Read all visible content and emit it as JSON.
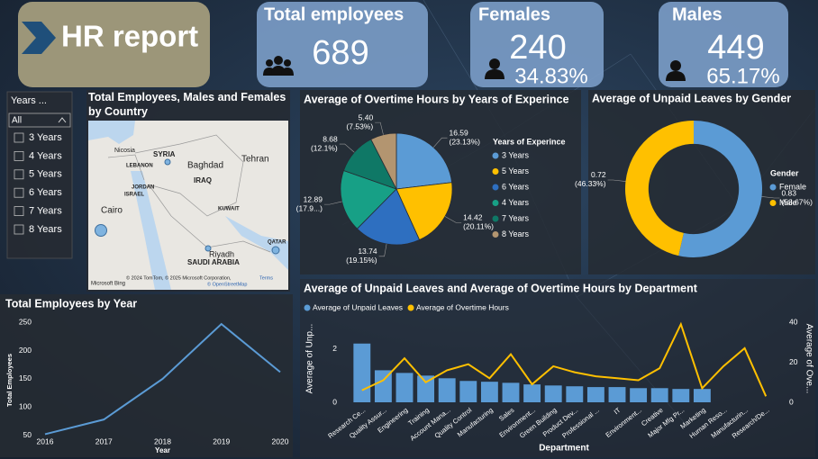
{
  "header": {
    "title": "HR report"
  },
  "cards": [
    {
      "title": "Total employees",
      "value": 689
    },
    {
      "title": "Females",
      "value": 240,
      "percent": "34.83%"
    },
    {
      "title": "Males",
      "value": 449,
      "percent": "65.17%"
    }
  ],
  "slicer": {
    "title": "Years ...",
    "selected": "All",
    "items": [
      "3 Years",
      "4 Years",
      "5 Years",
      "6 Years",
      "7 Years",
      "8 Years"
    ]
  },
  "map": {
    "title": "Total Employees, Males and Females by Country",
    "labels": [
      "Nicosia",
      "SYRIA",
      "LEBANON",
      "Baghdad",
      "Tehran",
      "ISRAEL",
      "JORDAN",
      "IRAQ",
      "Cairo",
      "KUWAIT",
      "Riyadh",
      "QATAR",
      "SAUDI ARABIA"
    ],
    "credits": "© 2024 TomTom, © 2025 Microsoft Corporation,",
    "terms": "Terms",
    "osm": "© OpenStreetMap",
    "logo": "Microsoft Bing"
  },
  "chart_data": [
    {
      "type": "pie",
      "title": "Average of Overtime Hours by Years of Experince",
      "legend_title": "Years of Experince",
      "legend": "right",
      "categories": [
        "3 Years",
        "5 Years",
        "6 Years",
        "4 Years",
        "7 Years",
        "8 Years"
      ],
      "values": [
        16.59,
        14.42,
        13.74,
        12.89,
        8.68,
        5.4
      ],
      "value_labels": [
        "16.59",
        "14.42",
        "13.74",
        "12.89",
        "8.68",
        "5.40"
      ],
      "percent_labels": [
        "(23.13%)",
        "(20.11%)",
        "(19.15%)",
        "(17.9...)",
        "(12.1%)",
        "(7.53%)"
      ],
      "colors": [
        "#5b9bd5",
        "#ffc000",
        "#2e6fc0",
        "#17a086",
        "#0f7866",
        "#b39570"
      ]
    },
    {
      "type": "donut",
      "title": "Average of Unpaid Leaves by Gender",
      "legend_title": "Gender",
      "legend": "right",
      "categories": [
        "Female",
        "Male"
      ],
      "values": [
        0.83,
        0.72
      ],
      "percent_labels": [
        "(53.67%)",
        "(46.33%)"
      ],
      "colors": [
        "#5b9bd5",
        "#ffc000"
      ]
    },
    {
      "type": "line",
      "title": "Total Employees by Year",
      "x_label": "Year",
      "y_label": "Total Employees",
      "x": [
        2016,
        2017,
        2018,
        2019,
        2020
      ],
      "values": [
        52,
        78,
        150,
        247,
        162
      ],
      "color": "#5b9bd5",
      "xlim": [
        2016,
        2020
      ],
      "xticks": [
        2016,
        2017,
        2018,
        2019,
        2020
      ],
      "ylim": [
        40,
        255
      ],
      "yticks": [
        50,
        100,
        150,
        200,
        250
      ],
      "grid": false
    },
    {
      "type": "combo",
      "title": "Average of Unpaid Leaves and Average of Overtime Hours by Department",
      "x_label": "Department",
      "y_label": "Average of Unp...",
      "y2_label": "Average of Ove...",
      "legend": "top-left",
      "categories": [
        "Research Ce...",
        "Quality Assur...",
        "Engineering",
        "Training",
        "Account Mana...",
        "Quality Control",
        "Manufacturing",
        "Sales",
        "Environment...",
        "Green Building",
        "Product Dev...",
        "Professional ...",
        "IT",
        "Environment...",
        "Creative",
        "Major Mfg Pr...",
        "Marketing",
        "Human Reso...",
        "Manufacturin...",
        "Research/De..."
      ],
      "series": [
        {
          "name": "Average of Unpaid Leaves",
          "type": "bar",
          "color": "#5b9bd5",
          "values": [
            2.2,
            1.2,
            1.1,
            1.0,
            0.9,
            0.8,
            0.77,
            0.73,
            0.67,
            0.63,
            0.6,
            0.57,
            0.57,
            0.53,
            0.53,
            0.5,
            0.5,
            null,
            null,
            null
          ]
        },
        {
          "name": "Average of Overtime Hours",
          "type": "line",
          "axis": "y2",
          "color": "#ffc000",
          "values": [
            6,
            11,
            22,
            10,
            16,
            19,
            12,
            24,
            9,
            18,
            15,
            13,
            12,
            11,
            17,
            39,
            7,
            18,
            27,
            3
          ]
        }
      ],
      "ylim": [
        0,
        3
      ],
      "yticks": [
        0,
        2
      ],
      "y2lim": [
        0,
        40
      ],
      "y2ticks": [
        0,
        20,
        40
      ],
      "grid": false
    }
  ]
}
